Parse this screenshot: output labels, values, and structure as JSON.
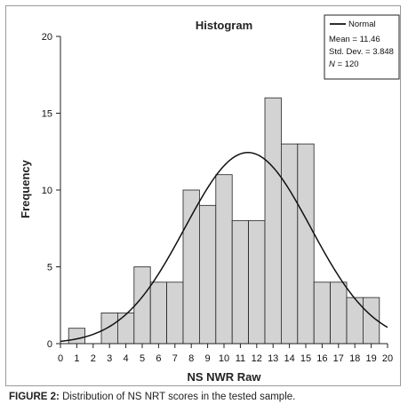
{
  "caption": {
    "label": "FIGURE 2:",
    "text": " Distribution of NS NRT scores in the tested sample."
  },
  "chart_data": {
    "type": "bar",
    "title": "Histogram",
    "xlabel": "NS NWR Raw",
    "ylabel": "Frequency",
    "xlim": [
      0,
      20
    ],
    "ylim": [
      0,
      20
    ],
    "x_ticks": [
      0,
      1,
      2,
      3,
      4,
      5,
      6,
      7,
      8,
      9,
      10,
      11,
      12,
      13,
      14,
      15,
      16,
      17,
      18,
      19,
      20
    ],
    "y_ticks": [
      0,
      5,
      10,
      15,
      20
    ],
    "bins": [
      {
        "start": 0.5,
        "end": 1.5,
        "value": 1
      },
      {
        "start": 1.5,
        "end": 2.5,
        "value": 0
      },
      {
        "start": 2.5,
        "end": 3.5,
        "value": 2
      },
      {
        "start": 3.5,
        "end": 4.5,
        "value": 2
      },
      {
        "start": 4.5,
        "end": 5.5,
        "value": 5
      },
      {
        "start": 5.5,
        "end": 6.5,
        "value": 4
      },
      {
        "start": 6.5,
        "end": 7.5,
        "value": 4
      },
      {
        "start": 7.5,
        "end": 8.5,
        "value": 10
      },
      {
        "start": 8.5,
        "end": 9.5,
        "value": 9
      },
      {
        "start": 9.5,
        "end": 10.5,
        "value": 11
      },
      {
        "start": 10.5,
        "end": 11.5,
        "value": 8
      },
      {
        "start": 11.5,
        "end": 12.5,
        "value": 8
      },
      {
        "start": 12.5,
        "end": 13.5,
        "value": 16
      },
      {
        "start": 13.5,
        "end": 14.5,
        "value": 13
      },
      {
        "start": 14.5,
        "end": 15.5,
        "value": 13
      },
      {
        "start": 15.5,
        "end": 16.5,
        "value": 4
      },
      {
        "start": 16.5,
        "end": 17.5,
        "value": 4
      },
      {
        "start": 17.5,
        "end": 18.5,
        "value": 3
      },
      {
        "start": 18.5,
        "end": 19.5,
        "value": 3
      }
    ],
    "normal_curve": {
      "name": "Normal",
      "mean": 11.46,
      "sd": 3.848,
      "n": 120,
      "bin_width": 1
    },
    "legend": {
      "position": "top-right",
      "series_label": "Normal",
      "mean_text": "Mean = 11.46",
      "sd_text": "Std. Dev. = 3.848",
      "n_symbol": "N",
      "n_text": " = 120"
    },
    "colors": {
      "bar_fill": "#d3d3d3",
      "bar_stroke": "#222222",
      "curve": "#111111"
    }
  }
}
